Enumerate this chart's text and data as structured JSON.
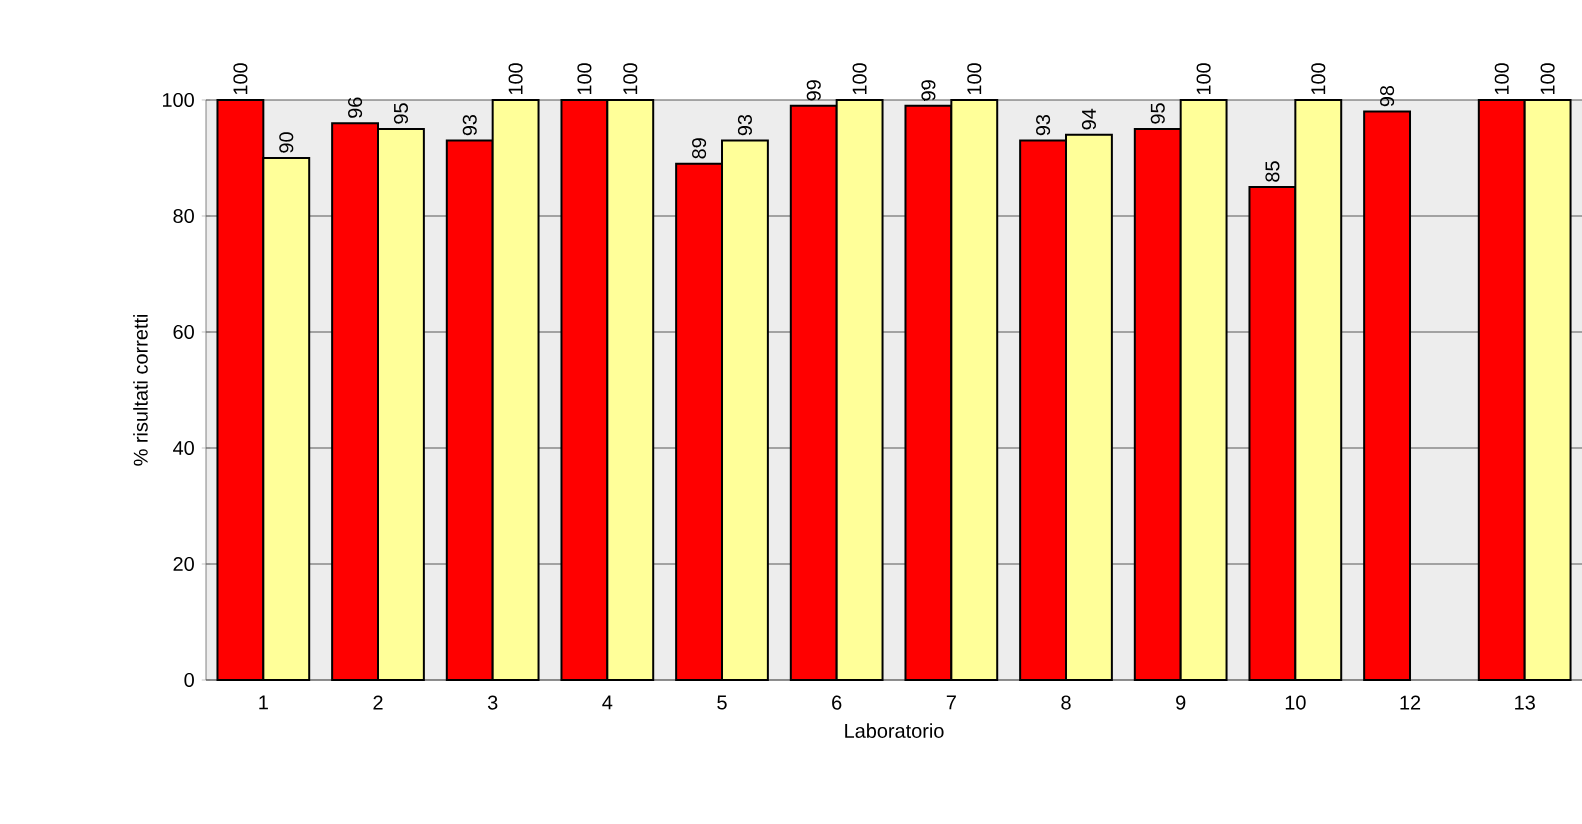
{
  "chart_data": {
    "type": "bar",
    "xlabel": "Laboratorio",
    "ylabel": "% risultati corretti",
    "categories": [
      "1",
      "2",
      "3",
      "4",
      "5",
      "6",
      "7",
      "8",
      "9",
      "10",
      "12",
      "13"
    ],
    "series": [
      {
        "color": "#ff0000",
        "values": [
          100,
          96,
          93,
          100,
          89,
          99,
          99,
          93,
          95,
          85,
          98,
          100
        ]
      },
      {
        "color": "#ffff99",
        "values": [
          90,
          95,
          100,
          100,
          93,
          100,
          100,
          94,
          100,
          100,
          null,
          100
        ]
      }
    ],
    "ylim": [
      0,
      100
    ],
    "yticks": [
      0,
      20,
      40,
      60,
      80,
      100
    ],
    "grid": "y",
    "data_labels": true
  }
}
